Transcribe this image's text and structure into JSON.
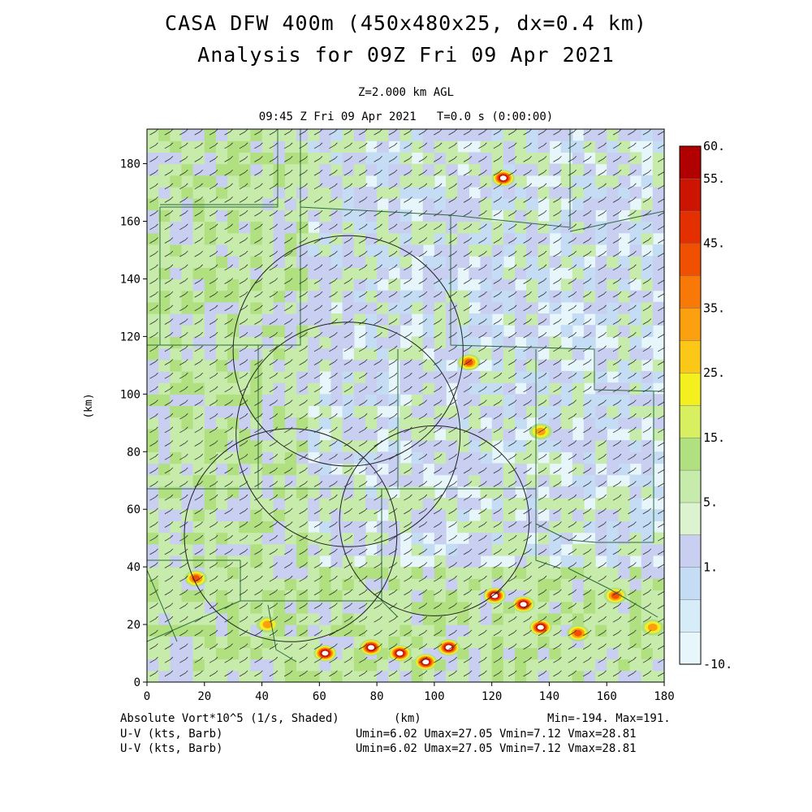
{
  "header": {
    "title_line1": "CASA DFW 400m (450x480x25, dx=0.4 km)",
    "title_line2": "Analysis for 09Z Fri 09 Apr 2021",
    "level": "Z=2.000 km AGL",
    "time": "09:45 Z Fri 09 Apr 2021   T=0.0 s (0:00:00)"
  },
  "footer": {
    "field_label": "Absolute Vort*10^5 (1/s, Shaded)",
    "xunit": "(km)",
    "minmax": "Min=-194. Max=191.",
    "barb1_label": "U-V (kts, Barb)",
    "barb1_stats": "Umin=6.02 Umax=27.05 Vmin=7.12 Vmax=28.81",
    "barb2_label": "U-V (kts, Barb)",
    "barb2_stats": "Umin=6.02 Umax=27.05 Vmin=7.12 Vmax=28.81"
  },
  "chart_data": {
    "type": "heatmap",
    "field": "Absolute Vort*10^5 (1/s)",
    "xlabel": "(km)",
    "ylabel": "(km)",
    "xlim": [
      0,
      180
    ],
    "ylim": [
      0,
      192
    ],
    "x_ticks": [
      0,
      20,
      40,
      60,
      80,
      100,
      120,
      140,
      160,
      180
    ],
    "y_ticks": [
      0,
      20,
      40,
      60,
      80,
      100,
      120,
      140,
      160,
      180
    ],
    "min": -194,
    "max": 191,
    "colorbar": {
      "levels": [
        -10,
        -5,
        0,
        1,
        3,
        5,
        10,
        15,
        20,
        25,
        30,
        35,
        40,
        45,
        50,
        55,
        60
      ],
      "labels": [
        {
          "value": 60,
          "text": "60."
        },
        {
          "value": 55,
          "text": "55."
        },
        {
          "value": 45,
          "text": "45."
        },
        {
          "value": 35,
          "text": "35."
        },
        {
          "value": 25,
          "text": "25."
        },
        {
          "value": 15,
          "text": "15."
        },
        {
          "value": 5,
          "text": "5."
        },
        {
          "value": 1,
          "text": "1."
        },
        {
          "value": -10,
          "text": "-10."
        }
      ],
      "colors": [
        "#e6f6fb",
        "#d6ecf8",
        "#c4dcf4",
        "#c8cff0",
        "#dcf3d0",
        "#c6ebaa",
        "#b0e080",
        "#d8f060",
        "#f4f020",
        "#fcc818",
        "#fca010",
        "#f87808",
        "#f05000",
        "#e43000",
        "#cc1400",
        "#b00000"
      ]
    },
    "radar_rings": [
      {
        "center": [
          70,
          86
        ],
        "radius_km": 39
      },
      {
        "center": [
          50,
          51
        ],
        "radius_km": 37
      },
      {
        "center": [
          70,
          115
        ],
        "radius_km": 40
      },
      {
        "center": [
          100,
          56
        ],
        "radius_km": 33
      }
    ],
    "vorticity_maxima": [
      {
        "x": 124,
        "y": 175,
        "value": 60
      },
      {
        "x": 112,
        "y": 111,
        "value": 40
      },
      {
        "x": 137,
        "y": 87,
        "value": 30
      },
      {
        "x": 17,
        "y": 36,
        "value": 45
      },
      {
        "x": 62,
        "y": 10,
        "value": 60
      },
      {
        "x": 78,
        "y": 12,
        "value": 60
      },
      {
        "x": 88,
        "y": 10,
        "value": 60
      },
      {
        "x": 97,
        "y": 7,
        "value": 60
      },
      {
        "x": 105,
        "y": 12,
        "value": 60
      },
      {
        "x": 121,
        "y": 30,
        "value": 60
      },
      {
        "x": 131,
        "y": 27,
        "value": 60
      },
      {
        "x": 137,
        "y": 19,
        "value": 60
      },
      {
        "x": 150,
        "y": 17,
        "value": 40
      },
      {
        "x": 163,
        "y": 30,
        "value": 40
      },
      {
        "x": 176,
        "y": 19,
        "value": 35
      },
      {
        "x": 42,
        "y": 20,
        "value": 35
      }
    ]
  }
}
